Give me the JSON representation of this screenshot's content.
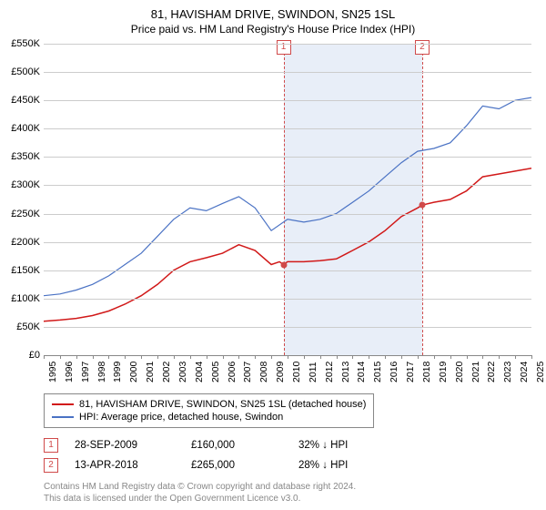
{
  "title": "81, HAVISHAM DRIVE, SWINDON, SN25 1SL",
  "subtitle": "Price paid vs. HM Land Registry's House Price Index (HPI)",
  "chart": {
    "type": "line",
    "background_color": "#ffffff",
    "grid_color": "#cccccc",
    "x_years": [
      1995,
      1996,
      1997,
      1998,
      1999,
      2000,
      2001,
      2002,
      2003,
      2004,
      2005,
      2006,
      2007,
      2008,
      2009,
      2010,
      2011,
      2012,
      2013,
      2014,
      2015,
      2016,
      2017,
      2018,
      2019,
      2020,
      2021,
      2022,
      2023,
      2024,
      2025
    ],
    "y_min": 0,
    "y_max": 550000,
    "y_tick_step": 50000,
    "y_labels": [
      "£0",
      "£50K",
      "£100K",
      "£150K",
      "£200K",
      "£250K",
      "£300K",
      "£350K",
      "£400K",
      "£450K",
      "£500K",
      "£550K"
    ],
    "shaded_band": {
      "x_start": 2009.75,
      "x_end": 2018.28,
      "color": "#e8eef8"
    },
    "markers": [
      {
        "label": "1",
        "x": 2009.75,
        "y": 160000
      },
      {
        "label": "2",
        "x": 2018.28,
        "y": 265000
      }
    ],
    "marker_color": "#d04a4a",
    "series": [
      {
        "name": "price_paid",
        "label": "81, HAVISHAM DRIVE, SWINDON, SN25 1SL (detached house)",
        "color": "#d11919",
        "line_width": 1.5,
        "data": [
          [
            1995,
            60000
          ],
          [
            1996,
            62000
          ],
          [
            1997,
            65000
          ],
          [
            1998,
            70000
          ],
          [
            1999,
            78000
          ],
          [
            2000,
            90000
          ],
          [
            2001,
            105000
          ],
          [
            2002,
            125000
          ],
          [
            2003,
            150000
          ],
          [
            2004,
            165000
          ],
          [
            2005,
            172000
          ],
          [
            2006,
            180000
          ],
          [
            2007,
            195000
          ],
          [
            2008,
            185000
          ],
          [
            2009,
            160000
          ],
          [
            2009.5,
            165000
          ],
          [
            2009.75,
            160000
          ],
          [
            2010,
            165000
          ],
          [
            2011,
            165000
          ],
          [
            2012,
            167000
          ],
          [
            2013,
            170000
          ],
          [
            2014,
            185000
          ],
          [
            2015,
            200000
          ],
          [
            2016,
            220000
          ],
          [
            2017,
            245000
          ],
          [
            2018,
            260000
          ],
          [
            2018.28,
            265000
          ],
          [
            2019,
            270000
          ],
          [
            2020,
            275000
          ],
          [
            2021,
            290000
          ],
          [
            2022,
            315000
          ],
          [
            2023,
            320000
          ],
          [
            2024,
            325000
          ],
          [
            2025,
            330000
          ]
        ]
      },
      {
        "name": "hpi",
        "label": "HPI: Average price, detached house, Swindon",
        "color": "#4a72c4",
        "line_width": 1.2,
        "data": [
          [
            1995,
            105000
          ],
          [
            1996,
            108000
          ],
          [
            1997,
            115000
          ],
          [
            1998,
            125000
          ],
          [
            1999,
            140000
          ],
          [
            2000,
            160000
          ],
          [
            2001,
            180000
          ],
          [
            2002,
            210000
          ],
          [
            2003,
            240000
          ],
          [
            2004,
            260000
          ],
          [
            2005,
            255000
          ],
          [
            2006,
            268000
          ],
          [
            2007,
            280000
          ],
          [
            2008,
            260000
          ],
          [
            2009,
            220000
          ],
          [
            2010,
            240000
          ],
          [
            2011,
            235000
          ],
          [
            2012,
            240000
          ],
          [
            2013,
            250000
          ],
          [
            2014,
            270000
          ],
          [
            2015,
            290000
          ],
          [
            2016,
            315000
          ],
          [
            2017,
            340000
          ],
          [
            2018,
            360000
          ],
          [
            2019,
            365000
          ],
          [
            2020,
            375000
          ],
          [
            2021,
            405000
          ],
          [
            2022,
            440000
          ],
          [
            2023,
            435000
          ],
          [
            2024,
            450000
          ],
          [
            2025,
            455000
          ]
        ]
      }
    ]
  },
  "legend": {
    "series_1_label": "81, HAVISHAM DRIVE, SWINDON, SN25 1SL (detached house)",
    "series_2_label": "HPI: Average price, detached house, Swindon"
  },
  "events": [
    {
      "marker": "1",
      "date": "28-SEP-2009",
      "price": "£160,000",
      "hpi": "32% ↓ HPI"
    },
    {
      "marker": "2",
      "date": "13-APR-2018",
      "price": "£265,000",
      "hpi": "28% ↓ HPI"
    }
  ],
  "footer": {
    "line1": "Contains HM Land Registry data © Crown copyright and database right 2024.",
    "line2": "This data is licensed under the Open Government Licence v3.0."
  }
}
